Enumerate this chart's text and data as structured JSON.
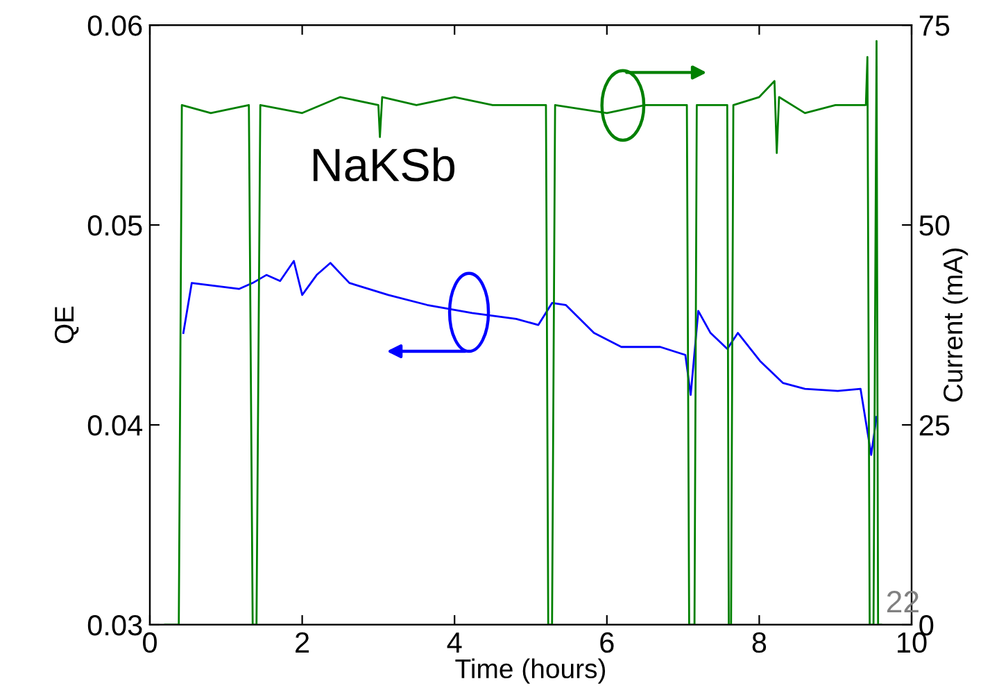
{
  "chart_data": {
    "type": "line",
    "xlabel": "Time (hours)",
    "ylabel": "QE",
    "y2label": "Current (mA)",
    "xlim": [
      0,
      10
    ],
    "xticks": [
      0,
      2,
      4,
      6,
      8,
      10
    ],
    "ylim": [
      0.03,
      0.06
    ],
    "yticks": [
      0.03,
      0.04,
      0.05,
      0.06
    ],
    "y2lim": [
      0,
      75
    ],
    "y2ticks": [
      0,
      25,
      50,
      75
    ],
    "grid": false,
    "legend": false,
    "annotations": [
      "NaKSb",
      "22"
    ],
    "series": [
      {
        "color": "#0000ff",
        "axis": "y",
        "x": [
          0.44,
          0.55,
          1.17,
          1.35,
          1.53,
          1.71,
          1.89,
          2.0,
          2.19,
          2.37,
          2.62,
          3.13,
          3.64,
          4.23,
          4.81,
          5.1,
          5.28,
          5.46,
          5.83,
          6.19,
          6.7,
          7.03,
          7.1,
          7.2,
          7.36,
          7.58,
          7.72,
          8.01,
          8.31,
          8.6,
          9.03,
          9.33,
          9.47,
          9.54
        ],
        "values": [
          0.0446,
          0.0471,
          0.0468,
          0.0471,
          0.0475,
          0.0472,
          0.0482,
          0.0465,
          0.0475,
          0.0481,
          0.0471,
          0.0465,
          0.046,
          0.0456,
          0.0453,
          0.045,
          0.0461,
          0.046,
          0.0446,
          0.0439,
          0.0439,
          0.0435,
          0.0415,
          0.0457,
          0.0446,
          0.0438,
          0.0446,
          0.0432,
          0.0421,
          0.0418,
          0.0417,
          0.0418,
          0.0385,
          0.0404
        ]
      },
      {
        "color": "#008000",
        "axis": "y2",
        "x": [
          0.2,
          0.38,
          0.42,
          0.8,
          1.3,
          1.35,
          1.4,
          1.45,
          2.0,
          2.5,
          3.0,
          3.02,
          3.05,
          3.5,
          4.0,
          4.5,
          5.2,
          5.23,
          5.28,
          5.32,
          6.0,
          6.5,
          7.05,
          7.08,
          7.15,
          7.18,
          7.58,
          7.6,
          7.63,
          7.66,
          8.0,
          8.2,
          8.23,
          8.26,
          8.6,
          9.0,
          9.4,
          9.42,
          9.45,
          9.5,
          9.54,
          9.56,
          9.6
        ],
        "values": [
          0,
          0,
          65,
          64,
          65,
          0,
          0,
          65,
          64,
          66,
          65,
          61,
          66,
          65,
          66,
          65,
          65,
          0,
          0,
          65,
          64,
          65,
          65,
          0,
          0,
          65,
          65,
          0,
          0,
          65,
          66,
          68,
          59,
          66,
          64,
          65,
          65,
          71,
          0,
          0,
          73,
          0,
          0
        ]
      }
    ]
  }
}
